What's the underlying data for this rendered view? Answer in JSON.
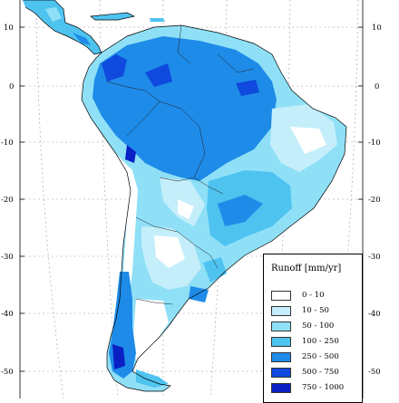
{
  "map": {
    "lat_ticks_left": [
      "10",
      "0",
      "-10",
      "-20",
      "-30",
      "-40",
      "-50"
    ],
    "lat_ticks_right": [
      "10",
      "0",
      "-10",
      "-20",
      "-30",
      "-40",
      "-50"
    ],
    "colors": {
      "ocean": "#ffffff",
      "coastline": "#000000",
      "grid": "#9e9e9e"
    }
  },
  "legend": {
    "title": "Runoff [mm/yr]",
    "classes": [
      {
        "label": "0  -  10",
        "color": "#ffffff"
      },
      {
        "label": "10  -  50",
        "color": "#c5eefb"
      },
      {
        "label": "50  -  100",
        "color": "#8fe0f7"
      },
      {
        "label": "100  -  250",
        "color": "#4fc3f0"
      },
      {
        "label": "250  -  500",
        "color": "#1e8be8"
      },
      {
        "label": "500  -  750",
        "color": "#0f49de"
      },
      {
        "label": "750  -  1000",
        "color": "#0a1fc4"
      }
    ]
  }
}
